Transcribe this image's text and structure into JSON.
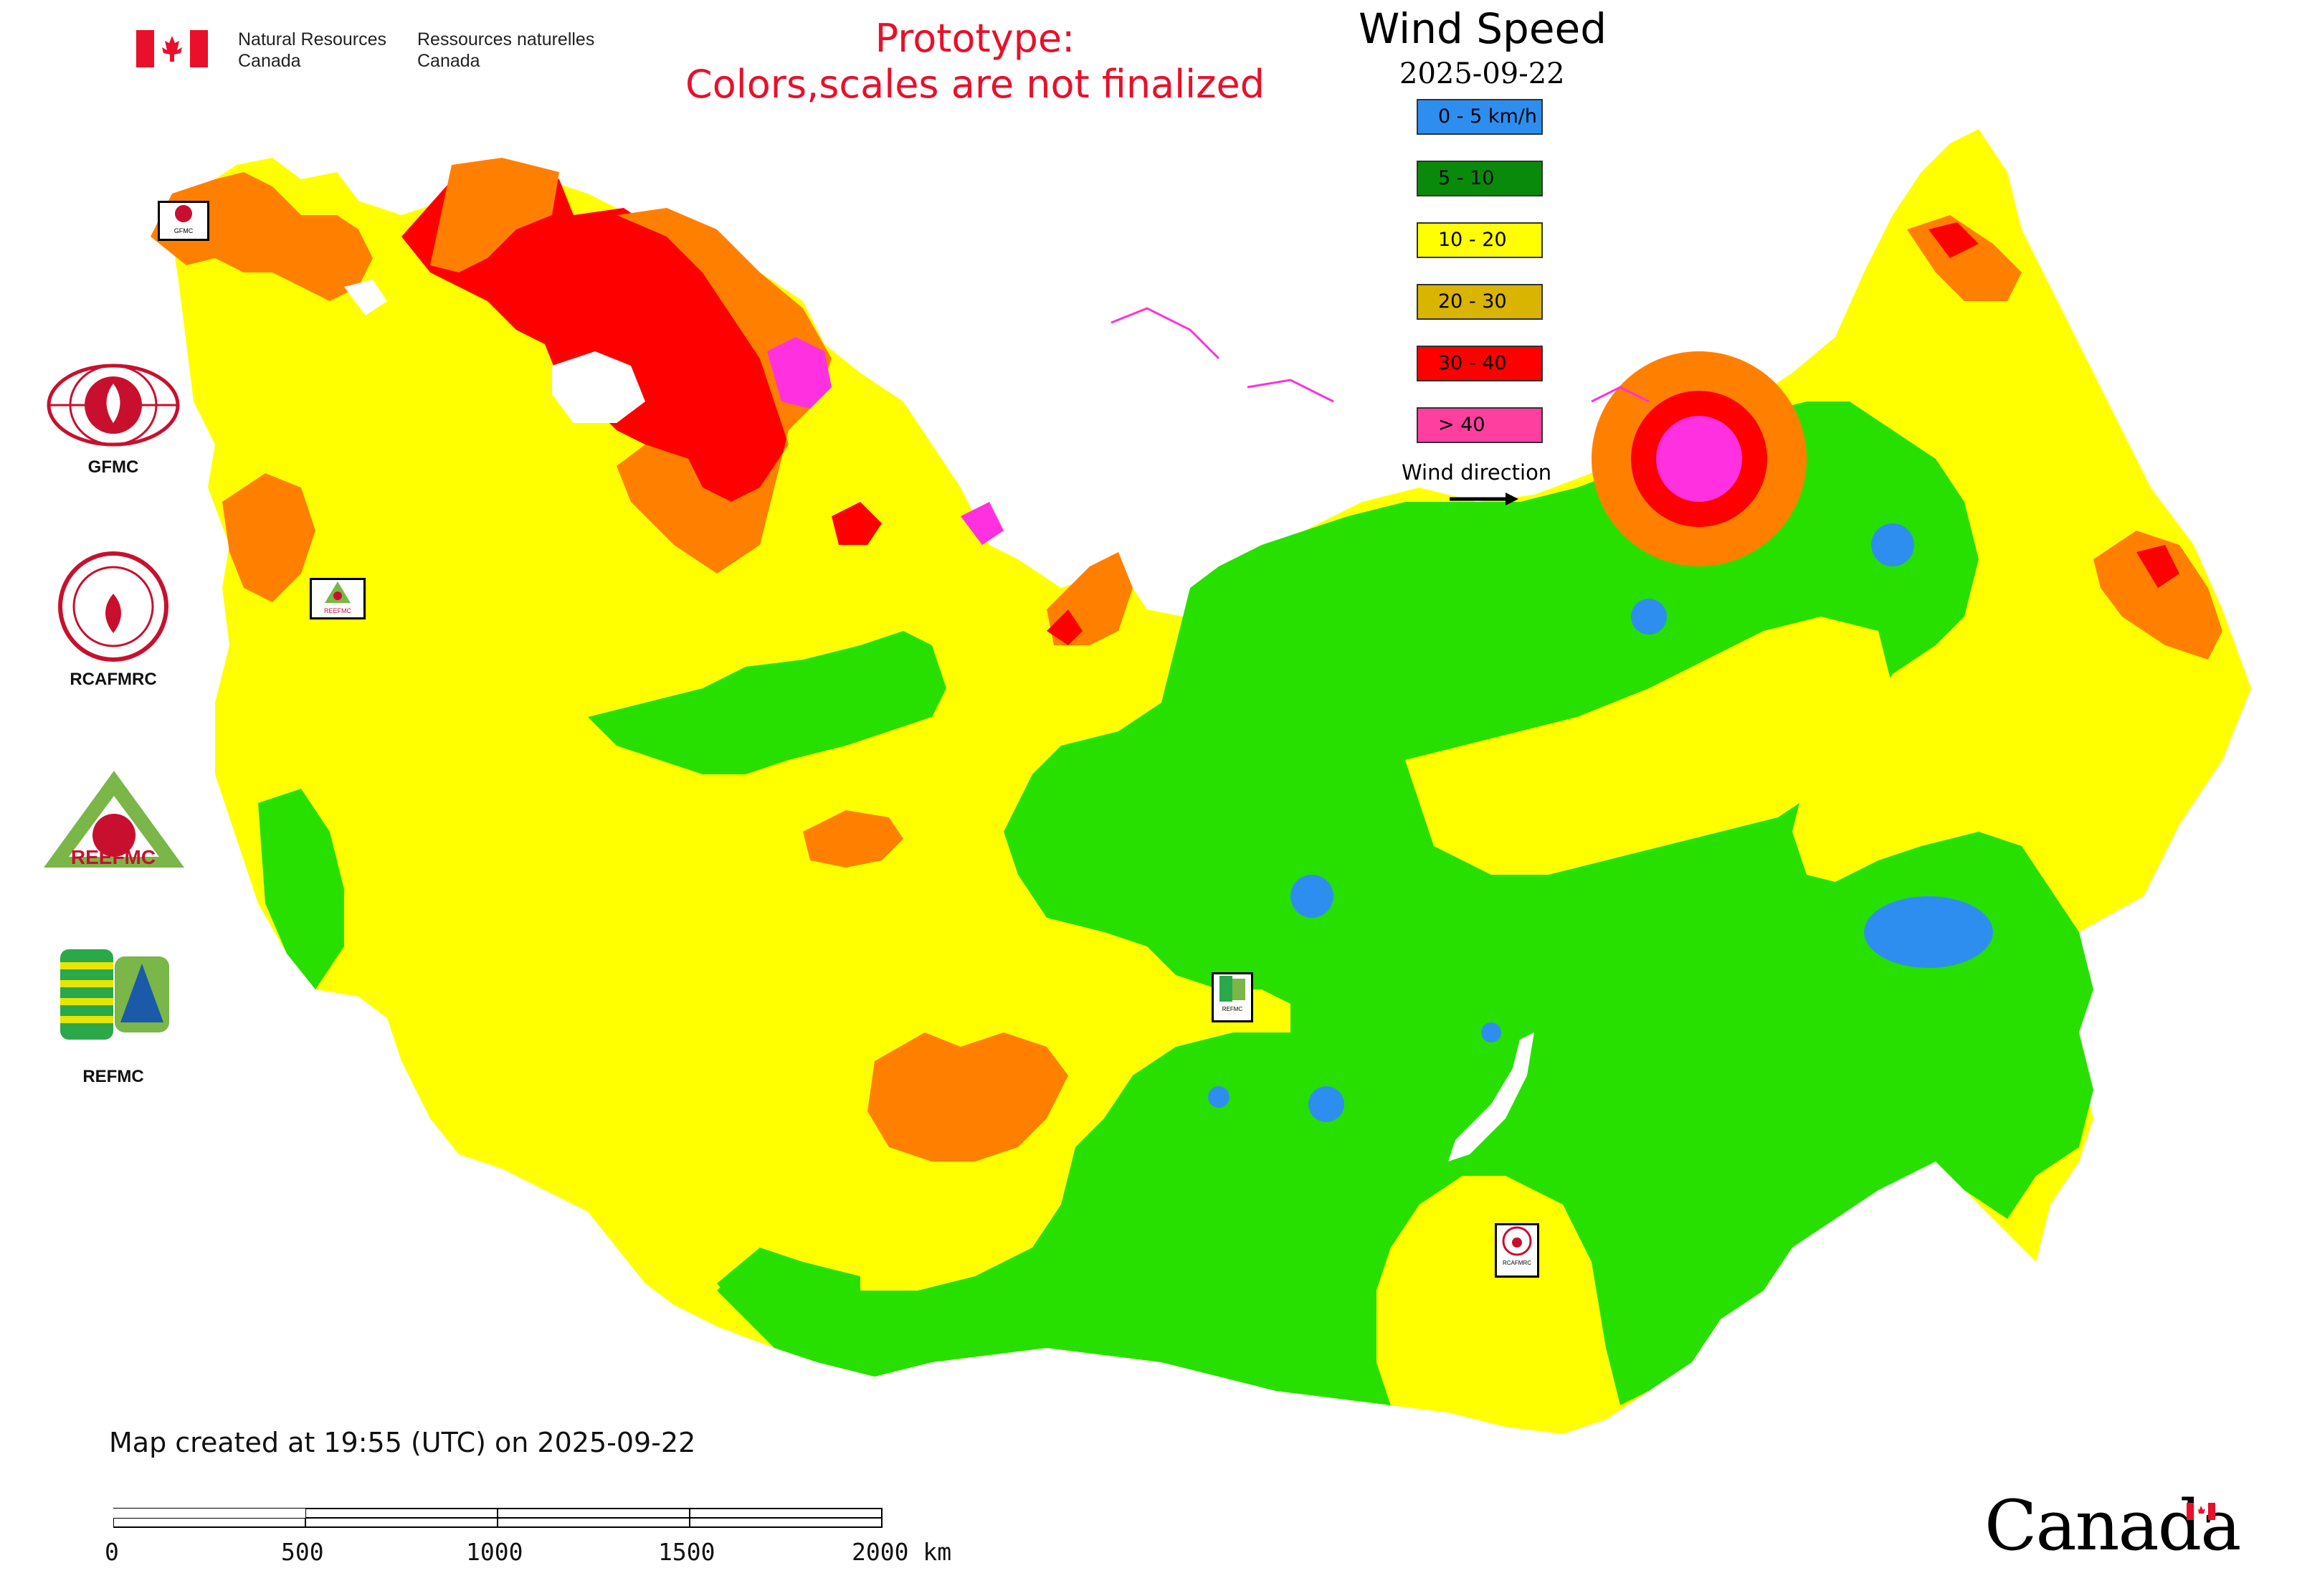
{
  "header": {
    "agency_en_line1": "Natural Resources",
    "agency_en_line2": "Canada",
    "agency_fr_line1": "Ressources naturelles",
    "agency_fr_line2": "Canada",
    "prototype_line1": "Prototype:",
    "prototype_line2": "Colors,scales are not finalized"
  },
  "legend": {
    "title": "Wind Speed",
    "date": "2025-09-22",
    "classes": [
      {
        "label": "0 - 5 km/h",
        "color": "#2e8ef0"
      },
      {
        "label": "5 - 10",
        "color": "#0a8a0a"
      },
      {
        "label": "10 - 20",
        "color": "#ffff00"
      },
      {
        "label": "20 - 30",
        "color": "#d9b400"
      },
      {
        "label": "30 - 40",
        "color": "#ff0000"
      },
      {
        "label": "> 40",
        "color": "#ff3fa0"
      }
    ],
    "wind_direction_label": "Wind direction"
  },
  "organizations": [
    {
      "name": "GFMC"
    },
    {
      "name": "RCAFMRC"
    },
    {
      "name": "REEFMC"
    },
    {
      "name": "REFMC"
    }
  ],
  "map_markers": [
    {
      "label": "GFMC"
    },
    {
      "label": "REEFMC"
    },
    {
      "label": "REFMC"
    },
    {
      "label": "RCAFMRC"
    }
  ],
  "footer": {
    "created": "Map created at 19:55 (UTC) on 2025-09-22",
    "scale_ticks": [
      "0",
      "500",
      "1000",
      "1500",
      "2000 km"
    ],
    "wordmark": "Canada"
  },
  "map_colors": {
    "calm": "#2e8ef0",
    "low": "#27e000",
    "moderate": "#ffff00",
    "high": "#ff8000",
    "very_high": "#ff0000",
    "extreme": "#ff30e0"
  }
}
